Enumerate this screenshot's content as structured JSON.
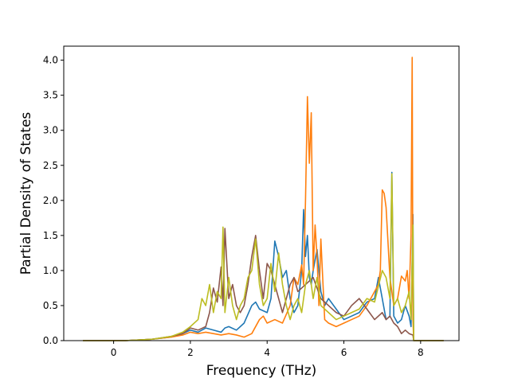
{
  "chart_data": {
    "type": "line",
    "title": "",
    "xlabel": "Frequency (THz)",
    "ylabel": "Partial Density of States",
    "xlim": [
      -1.3,
      9.0
    ],
    "ylim": [
      0.0,
      4.2
    ],
    "xticks": [
      0,
      2,
      4,
      6,
      8
    ],
    "yticks": [
      0.0,
      0.5,
      1.0,
      1.5,
      2.0,
      2.5,
      3.0,
      3.5,
      4.0
    ],
    "xtick_labels": [
      "0",
      "2",
      "4",
      "6",
      "8"
    ],
    "ytick_labels": [
      "0.0",
      "0.5",
      "1.0",
      "1.5",
      "2.0",
      "2.5",
      "3.0",
      "3.5",
      "4.0"
    ],
    "grid": false,
    "legend": "none",
    "series": [
      {
        "color": "#1f77b4",
        "x": [
          -0.8,
          0.3,
          1.0,
          1.5,
          1.8,
          2.0,
          2.2,
          2.4,
          2.6,
          2.8,
          2.9,
          3.0,
          3.2,
          3.4,
          3.6,
          3.7,
          3.8,
          4.0,
          4.1,
          4.2,
          4.3,
          4.4,
          4.5,
          4.6,
          4.7,
          4.8,
          4.9,
          4.95,
          5.0,
          5.05,
          5.1,
          5.15,
          5.2,
          5.3,
          5.4,
          5.5,
          5.6,
          5.8,
          6.0,
          6.2,
          6.4,
          6.6,
          6.8,
          6.9,
          7.0,
          7.1,
          7.2,
          7.25,
          7.3,
          7.4,
          7.5,
          7.6,
          7.7,
          7.75,
          7.8,
          7.82,
          8.0,
          8.6
        ],
        "y": [
          0.0,
          0.0,
          0.02,
          0.05,
          0.1,
          0.15,
          0.12,
          0.18,
          0.15,
          0.12,
          0.18,
          0.2,
          0.15,
          0.25,
          0.5,
          0.55,
          0.45,
          0.4,
          0.6,
          1.42,
          1.2,
          0.9,
          1.0,
          0.6,
          0.4,
          0.5,
          1.0,
          1.87,
          1.2,
          1.5,
          0.9,
          0.8,
          1.0,
          1.3,
          0.7,
          0.5,
          0.6,
          0.45,
          0.3,
          0.35,
          0.4,
          0.55,
          0.6,
          0.9,
          0.6,
          0.3,
          0.35,
          2.4,
          0.35,
          0.25,
          0.3,
          0.5,
          0.35,
          0.2,
          1.8,
          0.0,
          0.0,
          0.0
        ]
      },
      {
        "color": "#ff7f0e",
        "x": [
          -0.8,
          0.3,
          1.0,
          1.5,
          1.8,
          2.0,
          2.2,
          2.4,
          2.6,
          2.8,
          3.0,
          3.2,
          3.4,
          3.6,
          3.8,
          3.9,
          4.0,
          4.2,
          4.4,
          4.6,
          4.7,
          4.8,
          4.9,
          4.95,
          5.0,
          5.05,
          5.1,
          5.15,
          5.2,
          5.25,
          5.3,
          5.35,
          5.4,
          5.5,
          5.6,
          5.8,
          6.0,
          6.2,
          6.4,
          6.6,
          6.8,
          6.9,
          6.95,
          7.0,
          7.05,
          7.1,
          7.2,
          7.3,
          7.4,
          7.5,
          7.6,
          7.65,
          7.7,
          7.75,
          7.78,
          7.8,
          7.82,
          8.0,
          8.6
        ],
        "y": [
          0.0,
          0.0,
          0.02,
          0.05,
          0.08,
          0.12,
          0.1,
          0.12,
          0.1,
          0.08,
          0.1,
          0.08,
          0.05,
          0.1,
          0.3,
          0.35,
          0.25,
          0.3,
          0.25,
          0.5,
          0.9,
          0.8,
          1.08,
          0.8,
          2.0,
          3.48,
          2.53,
          3.25,
          1.0,
          1.65,
          1.2,
          0.5,
          1.45,
          0.3,
          0.25,
          0.2,
          0.25,
          0.3,
          0.35,
          0.5,
          0.7,
          0.8,
          1.0,
          2.15,
          2.1,
          1.9,
          0.9,
          0.5,
          0.6,
          0.92,
          0.85,
          1.0,
          0.6,
          1.5,
          4.04,
          0.3,
          0.0,
          0.0,
          0.0
        ]
      },
      {
        "color": "#8c564b",
        "x": [
          -0.8,
          0.3,
          1.0,
          1.5,
          1.8,
          2.0,
          2.2,
          2.4,
          2.5,
          2.6,
          2.7,
          2.8,
          2.85,
          2.9,
          3.0,
          3.1,
          3.2,
          3.3,
          3.4,
          3.5,
          3.6,
          3.7,
          3.8,
          3.9,
          4.0,
          4.1,
          4.2,
          4.3,
          4.4,
          4.5,
          4.6,
          4.7,
          4.8,
          5.0,
          5.2,
          5.4,
          5.6,
          5.8,
          6.0,
          6.2,
          6.4,
          6.6,
          6.8,
          7.0,
          7.1,
          7.2,
          7.3,
          7.4,
          7.5,
          7.6,
          7.7,
          7.8,
          7.82,
          8.0,
          8.6
        ],
        "y": [
          0.0,
          0.0,
          0.02,
          0.06,
          0.1,
          0.18,
          0.15,
          0.2,
          0.4,
          0.75,
          0.55,
          1.05,
          0.5,
          1.6,
          0.6,
          0.8,
          0.5,
          0.4,
          0.5,
          0.8,
          1.2,
          1.5,
          1.0,
          0.6,
          1.1,
          1.0,
          0.8,
          0.6,
          0.4,
          0.6,
          0.8,
          0.9,
          0.7,
          0.8,
          0.9,
          0.6,
          0.5,
          0.4,
          0.35,
          0.5,
          0.6,
          0.45,
          0.3,
          0.4,
          0.3,
          0.35,
          0.25,
          0.2,
          0.1,
          0.15,
          0.1,
          0.08,
          0.0,
          0.0,
          0.0
        ]
      },
      {
        "color": "#bcbd22",
        "x": [
          -0.8,
          0.3,
          1.0,
          1.5,
          1.8,
          2.0,
          2.2,
          2.3,
          2.4,
          2.5,
          2.6,
          2.7,
          2.8,
          2.85,
          2.9,
          3.0,
          3.1,
          3.2,
          3.3,
          3.4,
          3.5,
          3.6,
          3.7,
          3.8,
          3.9,
          4.0,
          4.1,
          4.2,
          4.3,
          4.4,
          4.5,
          4.6,
          4.7,
          4.8,
          4.9,
          5.0,
          5.1,
          5.2,
          5.3,
          5.4,
          5.6,
          5.8,
          6.0,
          6.2,
          6.4,
          6.6,
          6.8,
          7.0,
          7.1,
          7.2,
          7.25,
          7.3,
          7.4,
          7.5,
          7.6,
          7.7,
          7.75,
          7.8,
          7.82,
          8.0,
          8.6
        ],
        "y": [
          0.0,
          0.0,
          0.02,
          0.06,
          0.12,
          0.2,
          0.3,
          0.6,
          0.5,
          0.8,
          0.4,
          0.7,
          0.6,
          1.62,
          0.4,
          0.9,
          0.5,
          0.3,
          0.5,
          0.6,
          0.9,
          1.0,
          1.45,
          0.8,
          0.5,
          0.6,
          1.1,
          0.7,
          1.25,
          0.8,
          0.5,
          0.3,
          0.5,
          0.6,
          0.4,
          0.8,
          1.0,
          0.6,
          0.9,
          0.5,
          0.4,
          0.3,
          0.35,
          0.4,
          0.45,
          0.6,
          0.55,
          1.0,
          0.9,
          0.6,
          2.38,
          0.5,
          0.6,
          0.4,
          0.5,
          0.7,
          0.3,
          1.65,
          0.0,
          0.0,
          0.0
        ]
      }
    ]
  }
}
